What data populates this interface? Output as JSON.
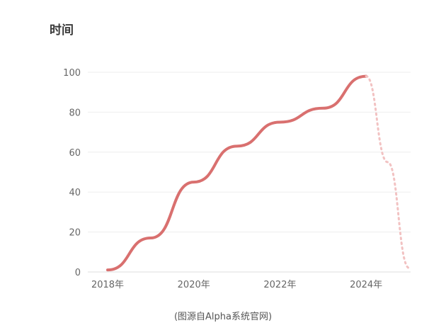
{
  "caption": "(图源自Alpha系统官网)",
  "colors": {
    "line": "#d9706f",
    "projection": "#f2c2c2",
    "grid": "#eeeeee",
    "axis": "#dddddd"
  },
  "chart_data": {
    "type": "line",
    "title": "时间",
    "xlabel": "",
    "ylabel": "",
    "xlim": [
      2018,
      2025
    ],
    "ylim": [
      0,
      100
    ],
    "y_ticks": [
      0,
      20,
      40,
      60,
      80,
      100
    ],
    "x_ticks": [
      2018,
      2020,
      2022,
      2024
    ],
    "x_tick_labels": [
      "2018年",
      "2020年",
      "2022年",
      "2024年"
    ],
    "grid": true,
    "series": [
      {
        "style": "solid",
        "x": [
          2018.0,
          2019.0,
          2020.0,
          2021.0,
          2022.0,
          2023.0,
          2024.0
        ],
        "y": [
          1,
          17,
          45,
          63,
          75,
          82,
          98
        ]
      },
      {
        "style": "dotted",
        "x": [
          2024.0,
          2024.5,
          2025.0
        ],
        "y": [
          98,
          55,
          2
        ]
      }
    ]
  }
}
